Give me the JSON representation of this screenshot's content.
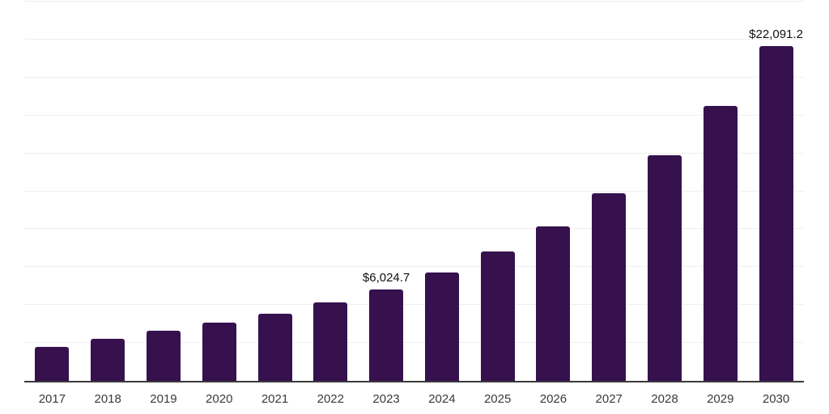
{
  "chart_data": {
    "type": "bar",
    "categories": [
      "2017",
      "2018",
      "2019",
      "2020",
      "2021",
      "2022",
      "2023",
      "2024",
      "2025",
      "2026",
      "2027",
      "2028",
      "2029",
      "2030"
    ],
    "values": [
      2250,
      2780,
      3300,
      3850,
      4420,
      5150,
      6024.7,
      7130,
      8550,
      10200,
      12360,
      14890,
      18100,
      22091.2
    ],
    "data_labels": [
      {
        "index": 6,
        "text": "$6,024.7"
      },
      {
        "index": 13,
        "text": "$22,091.2"
      }
    ],
    "ylim": [
      0,
      25000
    ],
    "grid_step": 2500,
    "grid": "horizontal",
    "legend": "none",
    "colors": {
      "bar": "#36114E",
      "gridline": "#efefef",
      "axis": "#3a3a3a",
      "data_label": "#101010",
      "tick_label": "#3a3a3a",
      "background": "#ffffff"
    }
  }
}
